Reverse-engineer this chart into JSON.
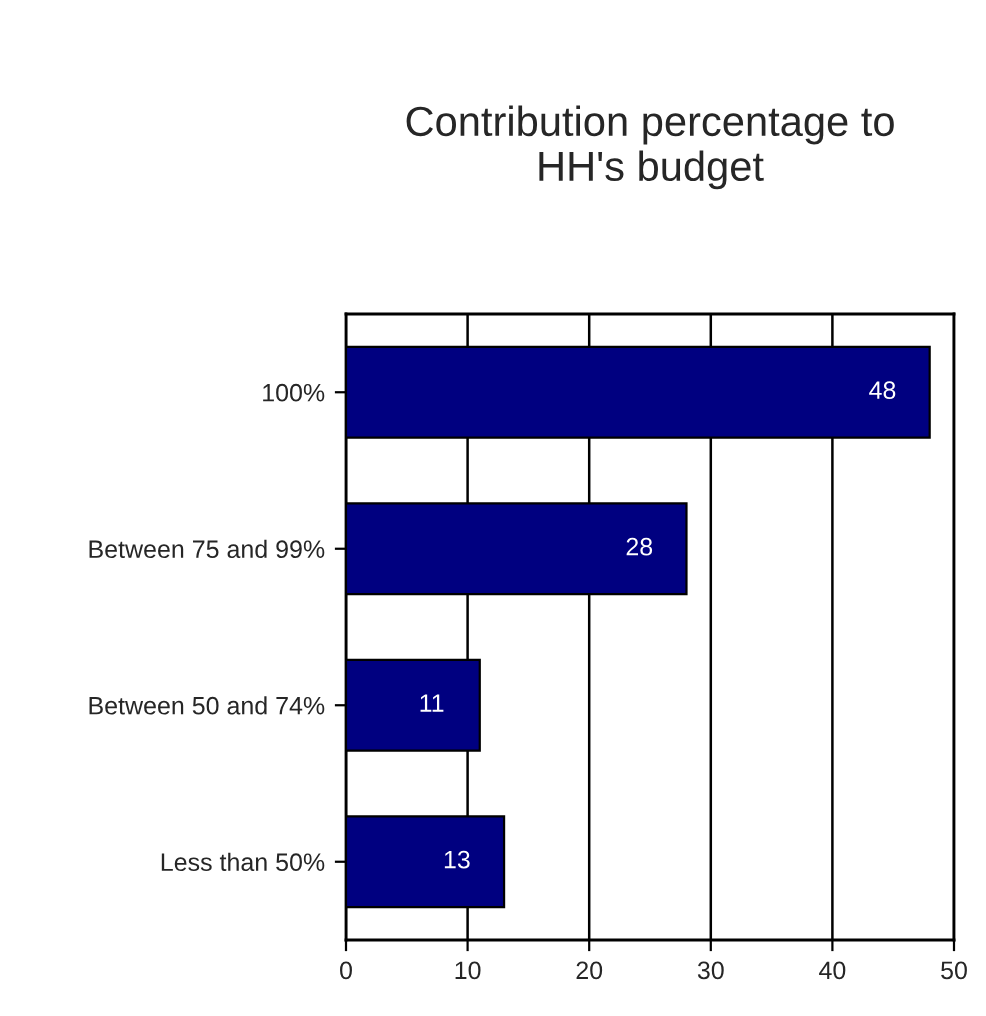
{
  "chart_data": {
    "type": "bar",
    "orientation": "horizontal",
    "title": "Contribution percentage to\nHH's budget",
    "categories": [
      "100%",
      "Between 75 and 99%",
      "Between 50 and 74%",
      "Less than 50%"
    ],
    "values": [
      48,
      28,
      11,
      13
    ],
    "color": "#000080",
    "data_labels": true,
    "xlim": [
      0,
      50
    ],
    "xticks": [
      0,
      10,
      20,
      30,
      40,
      50
    ],
    "grid": "x",
    "legend": false
  }
}
